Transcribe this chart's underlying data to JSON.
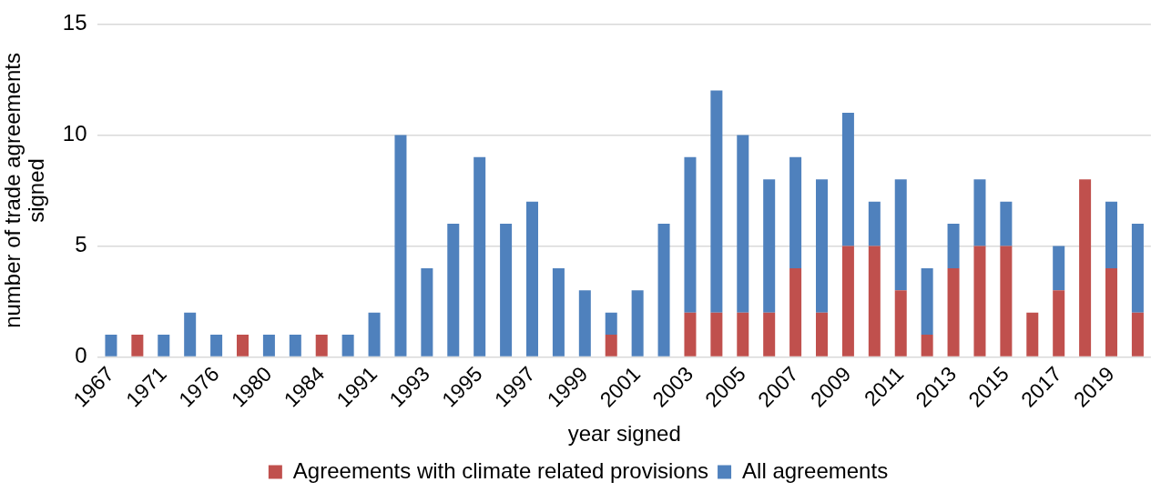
{
  "chart_data": {
    "type": "bar",
    "stacked": true,
    "xlabel": "year signed",
    "ylabel": "number of trade agreements signed",
    "categories": [
      "1967",
      null,
      "1971",
      null,
      "1976",
      null,
      "1980",
      null,
      "1984",
      null,
      "1991",
      null,
      "1993",
      null,
      "1995",
      null,
      "1997",
      null,
      "1999",
      null,
      "2001",
      null,
      "2003",
      null,
      "2005",
      null,
      "2007",
      null,
      "2009",
      null,
      "2011",
      null,
      "2013",
      null,
      "2015",
      null,
      "2017",
      null,
      "2019",
      null
    ],
    "series": [
      {
        "name": "Agreements with climate related provisions",
        "color": "#c0504d",
        "values": [
          null,
          1,
          null,
          null,
          null,
          1,
          null,
          null,
          1,
          null,
          null,
          null,
          null,
          null,
          null,
          null,
          null,
          null,
          null,
          1,
          null,
          null,
          2,
          2,
          2,
          2,
          4,
          2,
          5,
          5,
          3,
          1,
          4,
          5,
          5,
          2,
          3,
          8,
          4,
          2
        ]
      },
      {
        "name": "All agreements",
        "color": "#4f81bd",
        "values": [
          1,
          null,
          1,
          2,
          1,
          null,
          1,
          1,
          null,
          1,
          2,
          10,
          4,
          6,
          9,
          6,
          7,
          4,
          3,
          1,
          3,
          6,
          7,
          10,
          8,
          6,
          5,
          6,
          6,
          2,
          5,
          3,
          2,
          3,
          2,
          null,
          2,
          null,
          3,
          4
        ]
      }
    ],
    "ylim": [
      0,
      15
    ],
    "yticks": [
      0,
      5,
      10,
      15
    ],
    "grid": "y",
    "legend": "bottom"
  }
}
